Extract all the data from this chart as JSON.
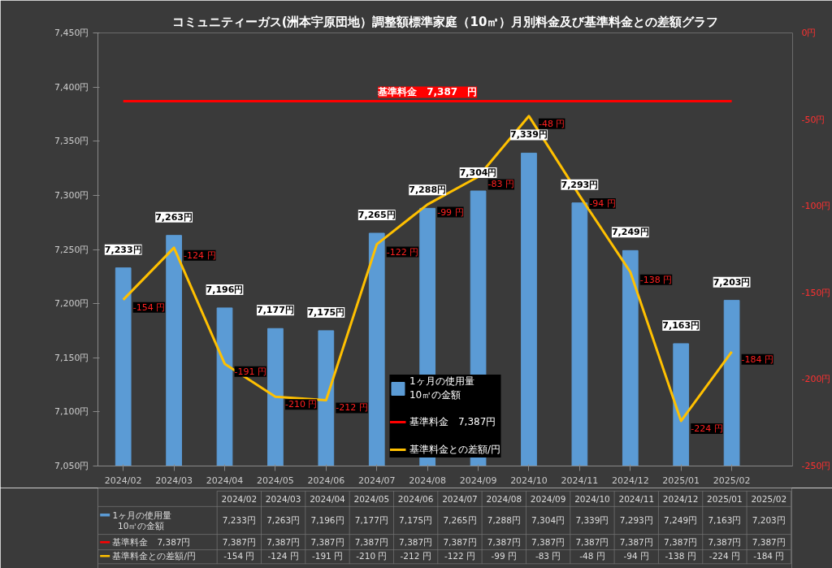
{
  "chart_data": {
    "type": "bar",
    "title": "コミュニティーガス(洲本宇原団地）調整額標準家庭（10㎥）月別料金及び基準料金との差額グラフ",
    "categories": [
      "2024/02",
      "2024/03",
      "2024/04",
      "2024/05",
      "2024/06",
      "2024/07",
      "2024/08",
      "2024/09",
      "2024/10",
      "2024/11",
      "2024/12",
      "2025/01",
      "2025/02"
    ],
    "series": [
      {
        "name": "1ヶ月の使用量\n10㎥の金額",
        "color": "#5b9bd5",
        "values": [
          7233,
          7263,
          7196,
          7177,
          7175,
          7265,
          7288,
          7304,
          7339,
          7293,
          7249,
          7163,
          7203
        ],
        "value_labels": [
          "7,233円",
          "7,263円",
          "7,196円",
          "7,177円",
          "7,175円",
          "7,265円",
          "7,288円",
          "7,304円",
          "7,339円",
          "7,293円",
          "7,249円",
          "7,163円",
          "7,203円"
        ]
      },
      {
        "name": "基準料金　7,387円",
        "type": "line",
        "color": "#ff0000",
        "values": [
          7387,
          7387,
          7387,
          7387,
          7387,
          7387,
          7387,
          7387,
          7387,
          7387,
          7387,
          7387,
          7387
        ]
      },
      {
        "name": "基準料金との差額/円",
        "type": "line",
        "axis": "y2",
        "color": "#ffc000",
        "values": [
          -154,
          -124,
          -191,
          -210,
          -212,
          -122,
          -99,
          -83,
          -48,
          -94,
          -138,
          -224,
          -184
        ],
        "value_labels": [
          "-154 円",
          "-124 円",
          "-191 円",
          "-210 円",
          "-212 円",
          "-122 円",
          "-99 円",
          "-83 円",
          "-48 円",
          "-94 円",
          "-138 円",
          "-224 円",
          "-184 円"
        ]
      }
    ],
    "annotations": [
      "基準料金　7,387　円",
      "7,387円",
      "7,387円",
      "7,387円",
      "7,387円",
      "7,387円",
      "7,387円",
      "7,387円",
      "7,387円",
      "7,387円",
      "7,387円",
      "7,387円",
      "7,387円",
      "7,387円"
    ],
    "ylim": [
      7050,
      7450
    ],
    "yticks": [
      {
        "value": 7050,
        "label": "7,050円"
      },
      {
        "value": 7100,
        "label": "7,100円"
      },
      {
        "value": 7150,
        "label": "7,150円"
      },
      {
        "value": 7200,
        "label": "7,200円"
      },
      {
        "value": 7250,
        "label": "7,250円"
      },
      {
        "value": 7300,
        "label": "7,300円"
      },
      {
        "value": 7350,
        "label": "7,350円"
      },
      {
        "value": 7400,
        "label": "7,400円"
      },
      {
        "value": 7450,
        "label": "7,450円"
      }
    ],
    "y2lim": [
      -250,
      0
    ],
    "y2ticks": [
      {
        "value": -250,
        "label": "-250円"
      },
      {
        "value": -200,
        "label": "-200円"
      },
      {
        "value": -150,
        "label": "-150円"
      },
      {
        "value": -100,
        "label": "-100円"
      },
      {
        "value": -50,
        "label": "-50円"
      },
      {
        "value": 0,
        "label": "0円"
      }
    ],
    "legend": "bottom",
    "grid": false
  }
}
